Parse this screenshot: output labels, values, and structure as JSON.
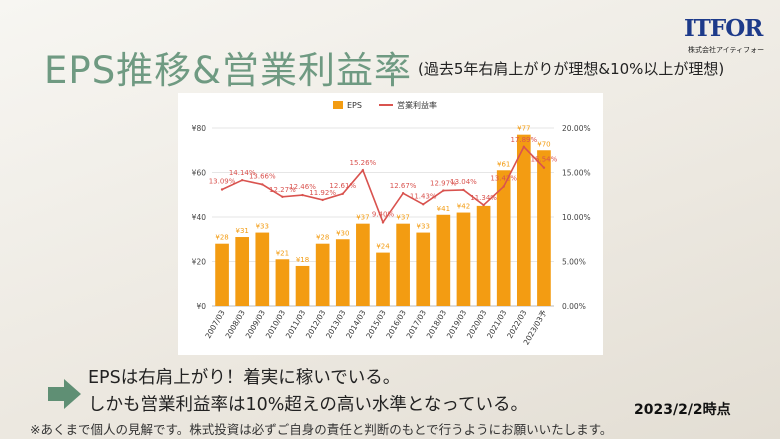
{
  "slide": {
    "title": "EPS推移&営業利益率",
    "subtitle": "(過去5年右肩上がりが理想&10%以上が理想)",
    "logo_text": "ITFOR",
    "logo_sub": "株式会社アイティフォー",
    "body_line1": "EPSは右肩上がり！着実に稼いでいる。",
    "body_line2": "しかも営業利益率は10%超えの高い水準となっている。",
    "date_note": "2023/2/2時点",
    "disclaimer": "※あくまで個人の見解です。株式投資は必ずご自身の責任と判断のもとで行うようにお願いいたします。",
    "title_color": "#6f9a82",
    "arrow_color": "#5f8f74"
  },
  "chart_data": {
    "type": "bar",
    "categories": [
      "2007/03",
      "2008/03",
      "2009/03",
      "2010/03",
      "2011/03",
      "2012/03",
      "2013/03",
      "2014/03",
      "2015/03",
      "2016/03",
      "2017/03",
      "2018/03",
      "2019/03",
      "2020/03",
      "2021/03",
      "2022/03",
      "2023/03予"
    ],
    "series": [
      {
        "name": "EPS",
        "type": "bar",
        "axis": "left",
        "color": "#f39c12",
        "values": [
          28,
          31,
          33,
          21,
          18,
          28,
          30,
          37,
          24,
          37,
          33,
          41,
          42,
          45,
          61,
          77,
          70
        ],
        "labels": [
          "¥28",
          "¥31",
          "¥33",
          "¥21",
          "¥18",
          "¥28",
          "¥30",
          "¥37",
          "¥24",
          "¥37",
          "¥33",
          "¥41",
          "¥42",
          "",
          "¥61",
          "¥77",
          "¥70"
        ]
      },
      {
        "name": "営業利益率",
        "type": "line",
        "axis": "right",
        "color": "#d9534f",
        "values": [
          13.09,
          14.14,
          13.66,
          12.27,
          12.46,
          11.92,
          12.61,
          15.26,
          9.4,
          12.67,
          11.43,
          12.97,
          13.04,
          11.34,
          13.42,
          17.89,
          15.54
        ],
        "labels": [
          "13.09%",
          "14.14%",
          "13.66%",
          "12.27%",
          "12.46%",
          "11.92%",
          "12.61%",
          "15.26%",
          "9.40%",
          "12.67%",
          "11.43%",
          "12.97%",
          "13.04%",
          "11.34%",
          "13.42%",
          "17.89%",
          "15.54%"
        ]
      }
    ],
    "left_axis": {
      "ticks": [
        "¥0",
        "¥20",
        "¥40",
        "¥60",
        "¥80"
      ],
      "min": 0,
      "max": 80
    },
    "right_axis": {
      "ticks": [
        "0.00%",
        "5.00%",
        "10.00%",
        "15.00%",
        "20.00%"
      ],
      "min": 0,
      "max": 20
    },
    "grid": true,
    "legend_position": "top"
  }
}
